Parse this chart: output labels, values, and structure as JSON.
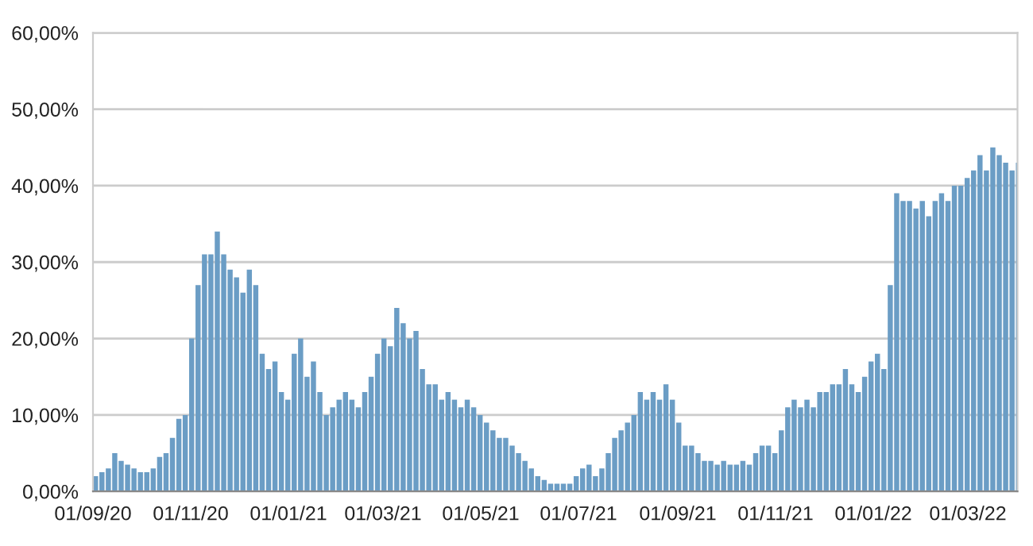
{
  "chart_data": {
    "type": "bar",
    "color": "#6b9dc5",
    "grid": "y",
    "legend": false,
    "x": [
      "2020-09-01",
      "2020-09-05",
      "2020-09-09",
      "2020-09-13",
      "2020-09-17",
      "2020-09-21",
      "2020-09-25",
      "2020-09-29",
      "2020-10-03",
      "2020-10-07",
      "2020-10-11",
      "2020-10-15",
      "2020-10-19",
      "2020-10-23",
      "2020-10-27",
      "2020-10-31",
      "2020-11-04",
      "2020-11-08",
      "2020-11-12",
      "2020-11-16",
      "2020-11-20",
      "2020-11-24",
      "2020-11-28",
      "2020-12-02",
      "2020-12-06",
      "2020-12-10",
      "2020-12-14",
      "2020-12-18",
      "2020-12-22",
      "2020-12-26",
      "2020-12-30",
      "2021-01-03",
      "2021-01-07",
      "2021-01-11",
      "2021-01-15",
      "2021-01-19",
      "2021-01-23",
      "2021-01-27",
      "2021-01-31",
      "2021-02-04",
      "2021-02-08",
      "2021-02-12",
      "2021-02-16",
      "2021-02-20",
      "2021-02-24",
      "2021-02-28",
      "2021-03-04",
      "2021-03-08",
      "2021-03-12",
      "2021-03-16",
      "2021-03-20",
      "2021-03-24",
      "2021-03-28",
      "2021-04-01",
      "2021-04-05",
      "2021-04-09",
      "2021-04-13",
      "2021-04-17",
      "2021-04-21",
      "2021-04-25",
      "2021-04-29",
      "2021-05-03",
      "2021-05-07",
      "2021-05-11",
      "2021-05-15",
      "2021-05-19",
      "2021-05-23",
      "2021-05-27",
      "2021-05-31",
      "2021-06-04",
      "2021-06-08",
      "2021-06-12",
      "2021-06-16",
      "2021-06-20",
      "2021-06-24",
      "2021-06-28",
      "2021-07-02",
      "2021-07-06",
      "2021-07-10",
      "2021-07-14",
      "2021-07-18",
      "2021-07-22",
      "2021-07-26",
      "2021-07-30",
      "2021-08-03",
      "2021-08-07",
      "2021-08-11",
      "2021-08-15",
      "2021-08-19",
      "2021-08-23",
      "2021-08-27",
      "2021-08-31",
      "2021-09-04",
      "2021-09-08",
      "2021-09-12",
      "2021-09-16",
      "2021-09-20",
      "2021-09-24",
      "2021-09-28",
      "2021-10-02",
      "2021-10-06",
      "2021-10-10",
      "2021-10-14",
      "2021-10-18",
      "2021-10-22",
      "2021-10-26",
      "2021-10-30",
      "2021-11-03",
      "2021-11-07",
      "2021-11-11",
      "2021-11-15",
      "2021-11-19",
      "2021-11-23",
      "2021-11-27",
      "2021-12-01",
      "2021-12-05",
      "2021-12-09",
      "2021-12-13",
      "2021-12-17",
      "2021-12-21",
      "2021-12-25",
      "2021-12-29",
      "2022-01-02",
      "2022-01-06",
      "2022-01-10",
      "2022-01-14",
      "2022-01-18",
      "2022-01-22",
      "2022-01-26",
      "2022-01-30",
      "2022-02-03",
      "2022-02-07",
      "2022-02-11",
      "2022-02-15",
      "2022-02-19",
      "2022-02-23",
      "2022-02-27",
      "2022-03-03",
      "2022-03-07",
      "2022-03-11",
      "2022-03-15",
      "2022-03-19",
      "2022-03-23",
      "2022-03-27",
      "2022-03-31"
    ],
    "values": [
      2,
      2.5,
      3,
      5,
      4,
      3.5,
      3,
      2.5,
      2.5,
      3,
      4.5,
      5,
      7,
      9.5,
      10,
      20,
      27,
      31,
      31,
      34,
      31,
      29,
      28,
      26,
      29,
      27,
      18,
      16,
      17,
      13,
      12,
      18,
      20,
      15,
      17,
      13,
      10,
      11,
      12,
      13,
      12,
      11,
      13,
      15,
      18,
      20,
      19,
      24,
      22,
      20,
      21,
      16,
      14,
      14,
      12,
      13,
      12,
      11,
      12,
      11,
      10,
      9,
      8,
      7,
      7,
      6,
      5,
      4,
      3,
      2,
      1.5,
      1,
      1,
      1,
      1,
      2,
      3,
      3.5,
      2,
      3,
      5,
      7,
      8,
      9,
      10,
      13,
      12,
      13,
      12,
      14,
      12,
      9,
      6,
      6,
      5,
      4,
      4,
      3.5,
      4,
      3.5,
      3.5,
      4,
      3.5,
      5,
      6,
      6,
      5,
      8,
      11,
      12,
      11,
      12,
      11,
      13,
      13,
      14,
      14,
      16,
      14,
      13,
      15,
      17,
      18,
      16,
      27,
      39,
      38,
      38,
      37,
      38,
      36,
      38,
      39,
      38,
      40,
      40,
      41,
      42,
      44,
      42,
      45,
      44,
      43,
      42,
      43
    ],
    "xlim": [
      "2020-09-01",
      "2022-04-01"
    ],
    "xticks": [
      {
        "value": "2020-09-01",
        "label": "01/09/20"
      },
      {
        "value": "2020-11-01",
        "label": "01/11/20"
      },
      {
        "value": "2021-01-01",
        "label": "01/01/21"
      },
      {
        "value": "2021-03-01",
        "label": "01/03/21"
      },
      {
        "value": "2021-05-01",
        "label": "01/05/21"
      },
      {
        "value": "2021-07-01",
        "label": "01/07/21"
      },
      {
        "value": "2021-09-01",
        "label": "01/09/21"
      },
      {
        "value": "2021-11-01",
        "label": "01/11/21"
      },
      {
        "value": "2022-01-01",
        "label": "01/01/22"
      },
      {
        "value": "2022-03-01",
        "label": "01/03/22"
      }
    ],
    "ylim": [
      0,
      60
    ],
    "yticks": [
      {
        "value": 0,
        "label": "0,00%"
      },
      {
        "value": 10,
        "label": "10,00%"
      },
      {
        "value": 20,
        "label": "20,00%"
      },
      {
        "value": 30,
        "label": "30,00%"
      },
      {
        "value": 40,
        "label": "40,00%"
      },
      {
        "value": 50,
        "label": "50,00%"
      },
      {
        "value": 60,
        "label": "60,00%"
      }
    ]
  }
}
